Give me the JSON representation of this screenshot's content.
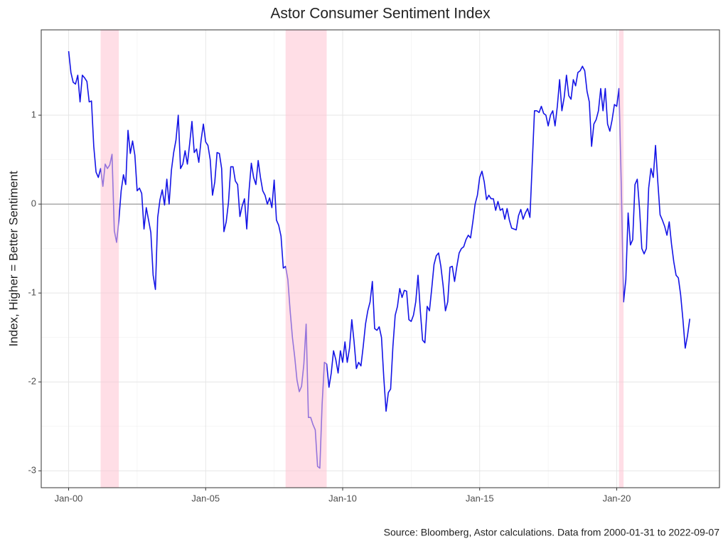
{
  "chart_data": {
    "type": "line",
    "title": "Astor Consumer Sentiment Index",
    "y_label": "Index, Higher = Better Sentiment",
    "caption": "Source: Bloomberg, Astor calculations. Data from 2000-01-31 to 2022-09-07",
    "color": "#1414e6",
    "hline": 0,
    "recession_color": "#ffc2d1",
    "recessions": [
      {
        "start": "2001-03",
        "end": "2001-11"
      },
      {
        "start": "2007-12",
        "end": "2009-06"
      },
      {
        "start": "2020-02",
        "end": "2020-04"
      }
    ],
    "xlim": [
      "1999-01",
      "2023-10"
    ],
    "xticks": [
      {
        "value": "2000-01",
        "label": "Jan-00"
      },
      {
        "value": "2005-01",
        "label": "Jan-05"
      },
      {
        "value": "2010-01",
        "label": "Jan-10"
      },
      {
        "value": "2015-01",
        "label": "Jan-15"
      },
      {
        "value": "2020-01",
        "label": "Jan-20"
      }
    ],
    "ylim": [
      -3.19,
      1.96
    ],
    "yticks": [
      -3,
      -2,
      -1,
      0,
      1
    ],
    "grid": true,
    "x": [
      "2000-01",
      "2000-02",
      "2000-03",
      "2000-04",
      "2000-05",
      "2000-06",
      "2000-07",
      "2000-08",
      "2000-09",
      "2000-10",
      "2000-11",
      "2000-12",
      "2001-01",
      "2001-02",
      "2001-03",
      "2001-04",
      "2001-05",
      "2001-06",
      "2001-07",
      "2001-08",
      "2001-09",
      "2001-10",
      "2001-11",
      "2001-12",
      "2002-01",
      "2002-02",
      "2002-03",
      "2002-04",
      "2002-05",
      "2002-06",
      "2002-07",
      "2002-08",
      "2002-09",
      "2002-10",
      "2002-11",
      "2002-12",
      "2003-01",
      "2003-02",
      "2003-03",
      "2003-04",
      "2003-05",
      "2003-06",
      "2003-07",
      "2003-08",
      "2003-09",
      "2003-10",
      "2003-11",
      "2003-12",
      "2004-01",
      "2004-02",
      "2004-03",
      "2004-04",
      "2004-05",
      "2004-06",
      "2004-07",
      "2004-08",
      "2004-09",
      "2004-10",
      "2004-11",
      "2004-12",
      "2005-01",
      "2005-02",
      "2005-03",
      "2005-04",
      "2005-05",
      "2005-06",
      "2005-07",
      "2005-08",
      "2005-09",
      "2005-10",
      "2005-11",
      "2005-12",
      "2006-01",
      "2006-02",
      "2006-03",
      "2006-04",
      "2006-05",
      "2006-06",
      "2006-07",
      "2006-08",
      "2006-09",
      "2006-10",
      "2006-11",
      "2006-12",
      "2007-01",
      "2007-02",
      "2007-03",
      "2007-04",
      "2007-05",
      "2007-06",
      "2007-07",
      "2007-08",
      "2007-09",
      "2007-10",
      "2007-11",
      "2007-12",
      "2008-01",
      "2008-02",
      "2008-03",
      "2008-04",
      "2008-05",
      "2008-06",
      "2008-07",
      "2008-08",
      "2008-09",
      "2008-10",
      "2008-11",
      "2008-12",
      "2009-01",
      "2009-02",
      "2009-03",
      "2009-04",
      "2009-05",
      "2009-06",
      "2009-07",
      "2009-08",
      "2009-09",
      "2009-10",
      "2009-11",
      "2009-12",
      "2010-01",
      "2010-02",
      "2010-03",
      "2010-04",
      "2010-05",
      "2010-06",
      "2010-07",
      "2010-08",
      "2010-09",
      "2010-10",
      "2010-11",
      "2010-12",
      "2011-01",
      "2011-02",
      "2011-03",
      "2011-04",
      "2011-05",
      "2011-06",
      "2011-07",
      "2011-08",
      "2011-09",
      "2011-10",
      "2011-11",
      "2011-12",
      "2012-01",
      "2012-02",
      "2012-03",
      "2012-04",
      "2012-05",
      "2012-06",
      "2012-07",
      "2012-08",
      "2012-09",
      "2012-10",
      "2012-11",
      "2012-12",
      "2013-01",
      "2013-02",
      "2013-03",
      "2013-04",
      "2013-05",
      "2013-06",
      "2013-07",
      "2013-08",
      "2013-09",
      "2013-10",
      "2013-11",
      "2013-12",
      "2014-01",
      "2014-02",
      "2014-03",
      "2014-04",
      "2014-05",
      "2014-06",
      "2014-07",
      "2014-08",
      "2014-09",
      "2014-10",
      "2014-11",
      "2014-12",
      "2015-01",
      "2015-02",
      "2015-03",
      "2015-04",
      "2015-05",
      "2015-06",
      "2015-07",
      "2015-08",
      "2015-09",
      "2015-10",
      "2015-11",
      "2015-12",
      "2016-01",
      "2016-02",
      "2016-03",
      "2016-04",
      "2016-05",
      "2016-06",
      "2016-07",
      "2016-08",
      "2016-09",
      "2016-10",
      "2016-11",
      "2016-12",
      "2017-01",
      "2017-02",
      "2017-03",
      "2017-04",
      "2017-05",
      "2017-06",
      "2017-07",
      "2017-08",
      "2017-09",
      "2017-10",
      "2017-11",
      "2017-12",
      "2018-01",
      "2018-02",
      "2018-03",
      "2018-04",
      "2018-05",
      "2018-06",
      "2018-07",
      "2018-08",
      "2018-09",
      "2018-10",
      "2018-11",
      "2018-12",
      "2019-01",
      "2019-02",
      "2019-03",
      "2019-04",
      "2019-05",
      "2019-06",
      "2019-07",
      "2019-08",
      "2019-09",
      "2019-10",
      "2019-11",
      "2019-12",
      "2020-01",
      "2020-02",
      "2020-03",
      "2020-04",
      "2020-05",
      "2020-06",
      "2020-07",
      "2020-08",
      "2020-09",
      "2020-10",
      "2020-11",
      "2020-12",
      "2021-01",
      "2021-02",
      "2021-03",
      "2021-04",
      "2021-05",
      "2021-06",
      "2021-07",
      "2021-08",
      "2021-09",
      "2021-10",
      "2021-11",
      "2021-12",
      "2022-01",
      "2022-02",
      "2022-03",
      "2022-04",
      "2022-05",
      "2022-06",
      "2022-07",
      "2022-08",
      "2022-09"
    ],
    "values": [
      1.72,
      1.48,
      1.37,
      1.35,
      1.45,
      1.15,
      1.45,
      1.42,
      1.38,
      1.15,
      1.16,
      0.65,
      0.36,
      0.3,
      0.4,
      0.2,
      0.45,
      0.4,
      0.44,
      0.56,
      -0.3,
      -0.43,
      -0.18,
      0.15,
      0.33,
      0.22,
      0.83,
      0.57,
      0.71,
      0.55,
      0.15,
      0.18,
      0.12,
      -0.28,
      -0.04,
      -0.18,
      -0.32,
      -0.8,
      -0.96,
      -0.15,
      0.05,
      0.16,
      -0.01,
      0.28,
      0.0,
      0.38,
      0.58,
      0.72,
      1.0,
      0.4,
      0.45,
      0.6,
      0.45,
      0.68,
      0.93,
      0.58,
      0.62,
      0.47,
      0.72,
      0.9,
      0.7,
      0.66,
      0.5,
      0.1,
      0.25,
      0.58,
      0.57,
      0.4,
      -0.31,
      -0.2,
      0.02,
      0.42,
      0.42,
      0.26,
      0.22,
      -0.14,
      -0.02,
      0.06,
      -0.28,
      0.15,
      0.46,
      0.3,
      0.22,
      0.49,
      0.3,
      0.15,
      0.1,
      0.0,
      0.07,
      -0.04,
      0.27,
      -0.18,
      -0.24,
      -0.36,
      -0.72,
      -0.7,
      -0.85,
      -1.2,
      -1.5,
      -1.72,
      -1.98,
      -2.11,
      -2.05,
      -1.8,
      -1.35,
      -2.4,
      -2.4,
      -2.48,
      -2.54,
      -2.95,
      -2.97,
      -2.25,
      -1.78,
      -1.8,
      -2.06,
      -1.9,
      -1.65,
      -1.75,
      -1.9,
      -1.65,
      -1.78,
      -1.55,
      -1.78,
      -1.62,
      -1.3,
      -1.55,
      -1.85,
      -1.78,
      -1.82,
      -1.6,
      -1.35,
      -1.2,
      -1.1,
      -0.87,
      -1.4,
      -1.42,
      -1.38,
      -1.5,
      -1.95,
      -2.33,
      -2.12,
      -2.08,
      -1.6,
      -1.25,
      -1.15,
      -0.95,
      -1.05,
      -0.97,
      -0.98,
      -1.3,
      -1.32,
      -1.25,
      -1.1,
      -0.8,
      -1.2,
      -1.53,
      -1.56,
      -1.15,
      -1.2,
      -0.95,
      -0.68,
      -0.58,
      -0.55,
      -0.7,
      -0.92,
      -1.2,
      -1.1,
      -0.71,
      -0.7,
      -0.87,
      -0.7,
      -0.55,
      -0.5,
      -0.48,
      -0.4,
      -0.35,
      -0.38,
      -0.2,
      0.0,
      0.1,
      0.3,
      0.37,
      0.25,
      0.05,
      0.1,
      0.06,
      0.06,
      -0.07,
      0.03,
      -0.07,
      -0.05,
      -0.17,
      -0.05,
      -0.18,
      -0.27,
      -0.28,
      -0.29,
      -0.13,
      -0.06,
      -0.17,
      -0.1,
      -0.05,
      -0.15,
      0.45,
      1.05,
      1.05,
      1.03,
      1.1,
      1.02,
      1.0,
      0.88,
      1.0,
      1.05,
      0.88,
      1.1,
      1.4,
      1.05,
      1.2,
      1.45,
      1.22,
      1.18,
      1.4,
      1.33,
      1.48,
      1.5,
      1.55,
      1.5,
      1.27,
      1.15,
      0.65,
      0.9,
      0.95,
      1.05,
      1.3,
      1.05,
      1.3,
      0.9,
      0.82,
      0.95,
      1.12,
      1.1,
      1.3,
      0.22,
      -1.1,
      -0.85,
      -0.1,
      -0.46,
      -0.4,
      0.22,
      0.28,
      -0.05,
      -0.5,
      -0.56,
      -0.5,
      0.18,
      0.4,
      0.3,
      0.66,
      0.25,
      -0.12,
      -0.18,
      -0.25,
      -0.35,
      -0.2,
      -0.45,
      -0.65,
      -0.8,
      -0.83,
      -1.02,
      -1.3,
      -1.62,
      -1.48,
      -1.29
    ]
  }
}
